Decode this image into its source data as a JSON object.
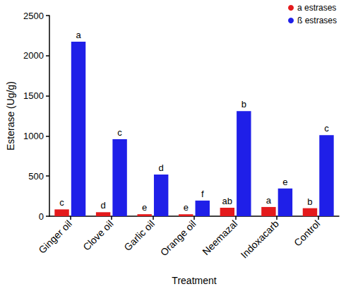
{
  "chart_data": {
    "type": "bar",
    "x_label": "Treatment",
    "y_label": "Esterase (Ug/g)",
    "categories": [
      "Ginger oil",
      "Clove oil",
      "Garlic oil",
      "Orange oil",
      "Neemazal",
      "Indoxacarb",
      "Control"
    ],
    "series": [
      {
        "name": "a estrases",
        "color": "#e41a1c",
        "values": [
          85,
          50,
          25,
          25,
          105,
          115,
          100
        ],
        "letters": [
          "c",
          "d",
          "e",
          "e",
          "ab",
          "a",
          "b"
        ]
      },
      {
        "name": "ß estrases",
        "color": "#1f1fe8",
        "values": [
          2175,
          960,
          520,
          195,
          1310,
          345,
          1010
        ],
        "letters": [
          "a",
          "c",
          "d",
          "f",
          "b",
          "e",
          "c"
        ]
      }
    ],
    "ylim": [
      0,
      2500
    ],
    "yticks": [
      0,
      500,
      1000,
      1500,
      2000,
      2500
    ],
    "grid": false,
    "legend": "top-right"
  }
}
